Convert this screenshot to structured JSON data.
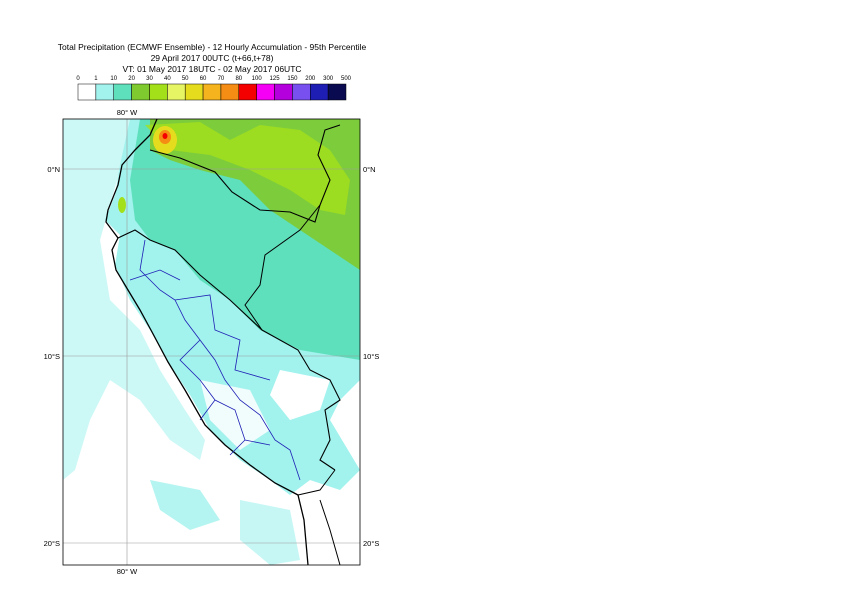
{
  "title": {
    "line1": "Total Precipitation (ECMWF Ensemble) - 12 Hourly Accumulation - 95th Percentile",
    "line2": "29 April 2017 00UTC (t+66,t+78)",
    "line3": "VT: 01 May 2017 18UTC - 02 May 2017 06UTC"
  },
  "legend": {
    "labels": [
      "0",
      "1",
      "10",
      "20",
      "30",
      "40",
      "50",
      "60",
      "70",
      "80",
      "100",
      "125",
      "150",
      "200",
      "300",
      "500"
    ],
    "colors": [
      "#ffffff",
      "#a2f2ee",
      "#5fe0bd",
      "#7fca2e",
      "#a4e01a",
      "#e6f564",
      "#e6dc1e",
      "#f5b41e",
      "#f58c14",
      "#f50000",
      "#f500f5",
      "#b400dc",
      "#7850f0",
      "#1e1eb4",
      "#0a0a50"
    ]
  },
  "gridlabels": {
    "lon": "80° W",
    "lat": [
      "0°N",
      "10°S",
      "20°S"
    ]
  }
}
